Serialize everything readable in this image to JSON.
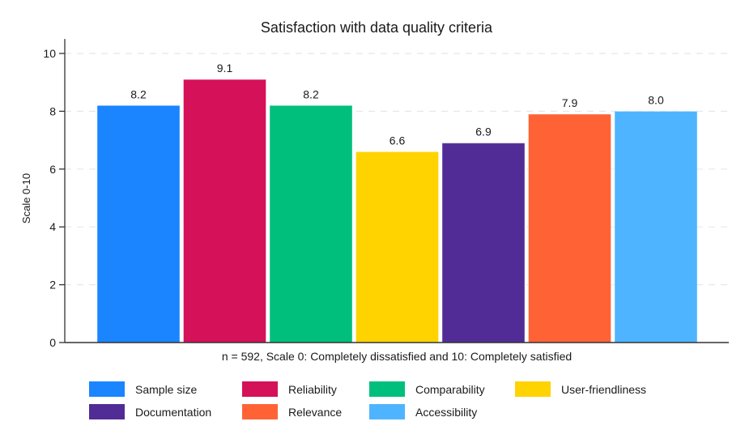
{
  "chart_data": {
    "type": "bar",
    "title": "Satisfaction with data quality criteria",
    "xlabel": "",
    "ylabel": "Scale 0-10",
    "note": "n = 592, Scale 0: Completely dissatisfied and 10: Completely satisfied",
    "ylim": [
      0,
      10.5
    ],
    "yticks": [
      0,
      2,
      4,
      6,
      8,
      10
    ],
    "grid": true,
    "legend_position": "bottom",
    "categories": [
      "Sample size",
      "Reliability",
      "Comparability",
      "User-friendliness",
      "Documentation",
      "Relevance",
      "Accessibility"
    ],
    "values": [
      8.2,
      9.1,
      8.2,
      6.6,
      6.9,
      7.9,
      8.0
    ],
    "data_labels": [
      "8.2",
      "9.1",
      "8.2",
      "6.6",
      "6.9",
      "7.9",
      "8.0"
    ],
    "colors": [
      "#1a85ff",
      "#d41159",
      "#00bf7d",
      "#ffd300",
      "#512c96",
      "#ff6335",
      "#4fb4ff"
    ]
  }
}
